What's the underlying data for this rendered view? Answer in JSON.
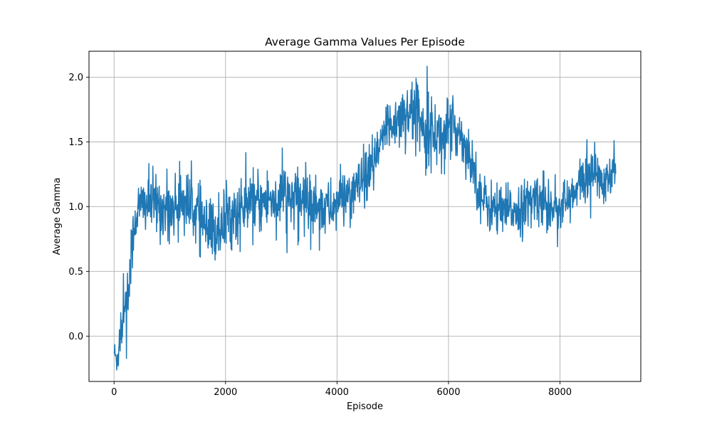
{
  "chart_data": {
    "type": "line",
    "title": "Average Gamma Values Per Episode",
    "xlabel": "Episode",
    "ylabel": "Average Gamma",
    "xlim": [
      -450,
      9450
    ],
    "ylim": [
      -0.35,
      2.2
    ],
    "xticks": [
      0,
      2000,
      4000,
      6000,
      8000
    ],
    "xtick_labels": [
      "0",
      "2000",
      "4000",
      "6000",
      "8000"
    ],
    "yticks": [
      0.0,
      0.5,
      1.0,
      1.5,
      2.0
    ],
    "ytick_labels": [
      "0.0",
      "0.5",
      "1.0",
      "1.5",
      "2.0"
    ],
    "grid": true,
    "legend": "none",
    "series": [
      {
        "color": "#1f77b4",
        "anchors": [
          [
            0,
            -0.12,
            0.05
          ],
          [
            50,
            -0.2,
            0.06
          ],
          [
            100,
            -0.02,
            0.1
          ],
          [
            150,
            0.15,
            0.15
          ],
          [
            200,
            0.28,
            0.14
          ],
          [
            250,
            0.3,
            0.12
          ],
          [
            300,
            0.55,
            0.12
          ],
          [
            350,
            0.82,
            0.1
          ],
          [
            400,
            0.95,
            0.11
          ],
          [
            500,
            1.02,
            0.11
          ],
          [
            700,
            1.03,
            0.12
          ],
          [
            900,
            0.98,
            0.12
          ],
          [
            1100,
            1.0,
            0.12
          ],
          [
            1200,
            1.06,
            0.12
          ],
          [
            1300,
            1.02,
            0.12
          ],
          [
            1500,
            0.96,
            0.12
          ],
          [
            1700,
            0.78,
            0.13
          ],
          [
            1900,
            0.85,
            0.13
          ],
          [
            2100,
            0.93,
            0.12
          ],
          [
            2400,
            1.0,
            0.12
          ],
          [
            2700,
            1.04,
            0.12
          ],
          [
            2900,
            1.07,
            0.12
          ],
          [
            3100,
            1.08,
            0.13
          ],
          [
            3300,
            1.05,
            0.12
          ],
          [
            3500,
            1.06,
            0.12
          ],
          [
            3700,
            1.0,
            0.12
          ],
          [
            3900,
            0.98,
            0.1
          ],
          [
            4100,
            1.08,
            0.1
          ],
          [
            4300,
            1.12,
            0.1
          ],
          [
            4500,
            1.2,
            0.1
          ],
          [
            4700,
            1.35,
            0.1
          ],
          [
            4850,
            1.58,
            0.11
          ],
          [
            5000,
            1.65,
            0.11
          ],
          [
            5200,
            1.72,
            0.11
          ],
          [
            5400,
            1.75,
            0.12
          ],
          [
            5600,
            1.62,
            0.13
          ],
          [
            5800,
            1.55,
            0.12
          ],
          [
            6000,
            1.6,
            0.12
          ],
          [
            6200,
            1.58,
            0.1
          ],
          [
            6400,
            1.38,
            0.1
          ],
          [
            6600,
            1.05,
            0.1
          ],
          [
            6800,
            0.98,
            0.1
          ],
          [
            7000,
            0.95,
            0.1
          ],
          [
            7200,
            0.98,
            0.1
          ],
          [
            7400,
            1.0,
            0.1
          ],
          [
            7600,
            1.08,
            0.11
          ],
          [
            7800,
            1.02,
            0.1
          ],
          [
            8000,
            1.0,
            0.1
          ],
          [
            8200,
            1.05,
            0.1
          ],
          [
            8400,
            1.2,
            0.1
          ],
          [
            8600,
            1.28,
            0.09
          ],
          [
            8800,
            1.15,
            0.08
          ],
          [
            8950,
            1.25,
            0.1
          ],
          [
            9000,
            1.3,
            0.1
          ]
        ]
      }
    ]
  }
}
